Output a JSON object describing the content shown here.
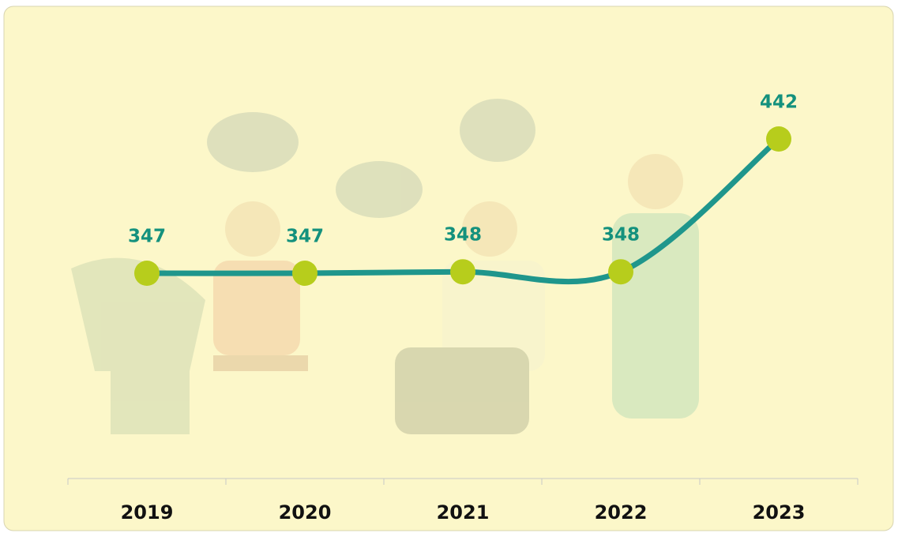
{
  "chart_data": {
    "type": "line",
    "categories": [
      "2019",
      "2020",
      "2021",
      "2022",
      "2023"
    ],
    "values": [
      347,
      347,
      348,
      348,
      442
    ],
    "line_color": "#1f968c",
    "marker_color": "#b7cd1c",
    "label_color": "#14917d",
    "background": "#fcf7c9"
  }
}
